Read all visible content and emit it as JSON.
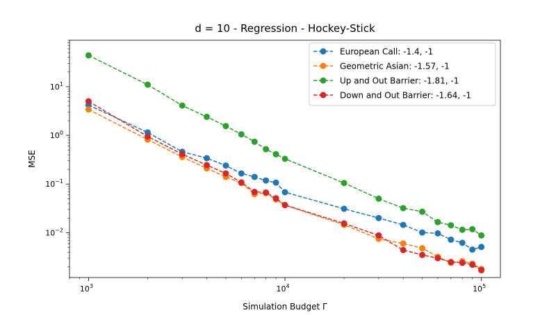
{
  "chart_data": {
    "type": "line",
    "title": "d = 10 - Regression - Hockey-Stick",
    "xlabel": "Simulation Budget Γ",
    "ylabel": "MSE",
    "xscale": "log",
    "yscale": "log",
    "xlim": [
      800,
      125000
    ],
    "ylim": [
      0.0012,
      90
    ],
    "xticks": [
      {
        "value": 1000,
        "base": "10",
        "exp": "3"
      },
      {
        "value": 10000,
        "base": "10",
        "exp": "4"
      },
      {
        "value": 100000,
        "base": "10",
        "exp": "5"
      }
    ],
    "yticks": [
      {
        "value": 0.01,
        "base": "10",
        "exp": "−2"
      },
      {
        "value": 0.1,
        "base": "10",
        "exp": "−1"
      },
      {
        "value": 1,
        "base": "10",
        "exp": "0"
      },
      {
        "value": 10,
        "base": "10",
        "exp": "1"
      }
    ],
    "grid": false,
    "legend_position": "top-right",
    "x": [
      1000,
      2000,
      3000,
      4000,
      5000,
      6000,
      7000,
      8000,
      9000,
      10000,
      20000,
      30000,
      40000,
      50000,
      60000,
      70000,
      80000,
      90000,
      100000
    ],
    "series": [
      {
        "name": "European Call: -1.4, -1",
        "color": "#1f77b4",
        "values": [
          4.2,
          1.15,
          0.46,
          0.34,
          0.24,
          0.165,
          0.14,
          0.118,
          0.107,
          0.068,
          0.031,
          0.02,
          0.0145,
          0.0101,
          0.0097,
          0.0072,
          0.0062,
          0.0045,
          0.0051
        ]
      },
      {
        "name": "Geometric Asian: -1.57, -1",
        "color": "#ff7f0e",
        "values": [
          3.4,
          0.82,
          0.36,
          0.21,
          0.14,
          0.105,
          0.062,
          0.065,
          0.048,
          0.037,
          0.0145,
          0.0075,
          0.006,
          0.0048,
          0.0032,
          0.0024,
          0.0026,
          0.0023,
          0.0018
        ]
      },
      {
        "name": "Up and Out Barrier: -1.81, -1",
        "color": "#2ca02c",
        "values": [
          44,
          11,
          4.1,
          2.4,
          1.55,
          1.05,
          0.74,
          0.52,
          0.41,
          0.33,
          0.105,
          0.05,
          0.032,
          0.027,
          0.0165,
          0.0142,
          0.0115,
          0.0118,
          0.0088
        ]
      },
      {
        "name": "Down and Out Barrier: -1.64, -1",
        "color": "#d62728",
        "values": [
          5.0,
          0.95,
          0.41,
          0.245,
          0.165,
          0.108,
          0.069,
          0.067,
          0.051,
          0.037,
          0.0155,
          0.0088,
          0.0044,
          0.0035,
          0.003,
          0.0025,
          0.0024,
          0.0022,
          0.0017
        ]
      }
    ]
  }
}
